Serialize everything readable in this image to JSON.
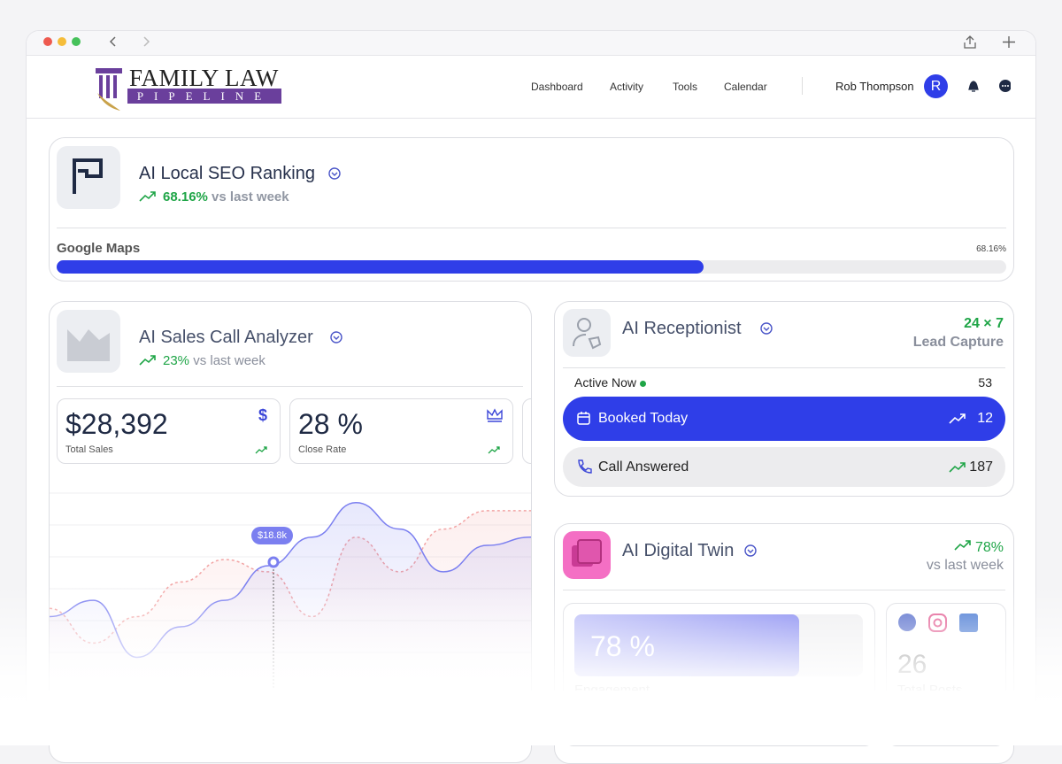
{
  "header": {
    "logo_line1": "FAMILY LAW",
    "logo_line2": "PIPELINE",
    "nav": [
      "Dashboard",
      "Activity",
      "Tools",
      "Calendar"
    ],
    "user": "Rob Thompson",
    "avatar": "R"
  },
  "seo": {
    "title": "AI Local SEO Ranking",
    "change": "68.16%",
    "change_suffix": "vs last week",
    "source": "Google Maps",
    "progress": {
      "value": 68.16,
      "label": "68.16%"
    }
  },
  "sales": {
    "title": "AI Sales Call Analyzer",
    "change": "23%",
    "change_suffix": "vs last week",
    "stats": [
      {
        "value": "$28,392",
        "label": "Total Sales",
        "icon": "$"
      },
      {
        "value": "28 %",
        "label": "Close Rate"
      }
    ],
    "chart": {
      "ylim": [
        0,
        100
      ],
      "tooltip": "$18.8k",
      "series": [
        {
          "color": "#7b7ff0",
          "values": [
            35,
            43,
            15,
            30,
            43,
            60,
            74,
            91,
            78,
            57,
            70,
            74
          ]
        },
        {
          "color": "#f2a4a4",
          "values": [
            39,
            22,
            35,
            52,
            63,
            57,
            35,
            74,
            57,
            78,
            87,
            87
          ]
        }
      ]
    }
  },
  "receptionist": {
    "title": "AI Receptionist",
    "badge": "24 × 7",
    "badge_sub": "Lead Capture",
    "active_label": "Active Now",
    "active_count": "53",
    "rows": [
      {
        "label": "Booked Today",
        "count": "12"
      },
      {
        "label": "Call Answered",
        "count": "187"
      }
    ]
  },
  "twin": {
    "title": "AI Digital Twin",
    "change": "78%",
    "change_suffix": "vs last week",
    "engagement": {
      "value": 78,
      "label": "78 %"
    },
    "engagement_caption": "Engagement",
    "posts": "26",
    "posts_caption": "Total Posts"
  }
}
